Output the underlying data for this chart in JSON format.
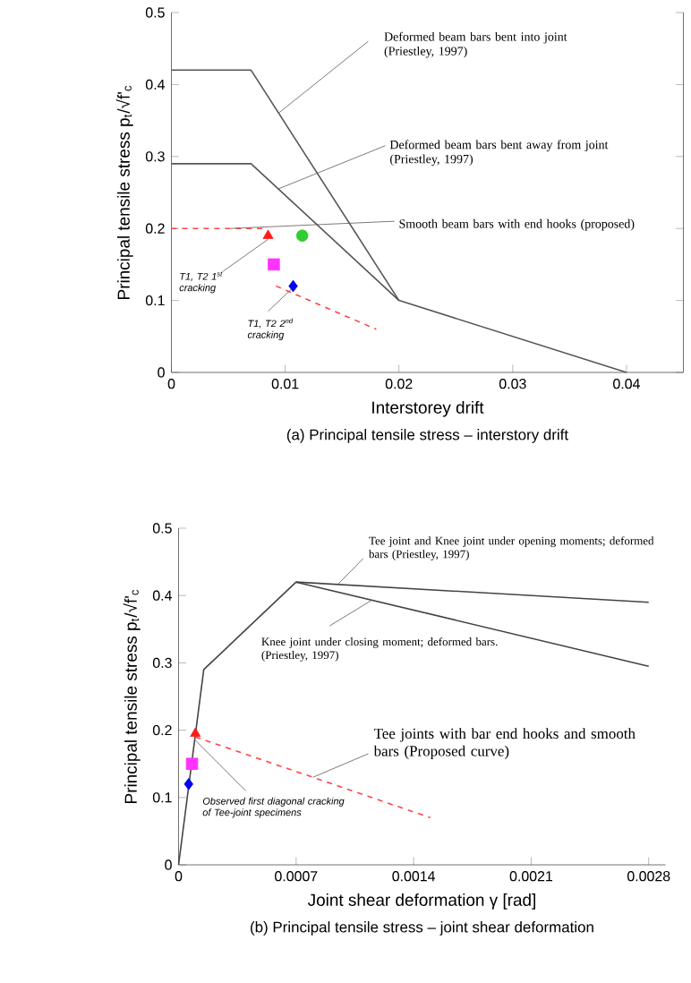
{
  "chart_data": [
    {
      "type": "line",
      "title": "(a) Principal tensile stress – interstory drift",
      "xlabel": "Interstorey drift",
      "ylabel": "Principal tensile stress p$_{t}$/√f'$_{c}$",
      "xlim": [
        0,
        0.045
      ],
      "ylim": [
        0,
        0.5
      ],
      "xticks": [
        0,
        0.01,
        0.02,
        0.03,
        0.04
      ],
      "yticks": [
        0,
        0.1,
        0.2,
        0.3,
        0.4,
        0.5
      ],
      "series": [
        {
          "type": "line",
          "color": "#555555",
          "x": [
            0,
            0.007,
            0.02,
            0.04
          ],
          "values": [
            0.42,
            0.42,
            0.1,
            0
          ]
        },
        {
          "type": "line",
          "color": "#555555",
          "x": [
            0,
            0.007,
            0.02
          ],
          "values": [
            0.29,
            0.29,
            0.1
          ]
        },
        {
          "type": "line",
          "color": "#ff4444",
          "line_style": "dashed",
          "x": [
            0,
            0.008
          ],
          "values": [
            0.2,
            0.2
          ]
        },
        {
          "type": "line",
          "color": "#ff4444",
          "line_style": "dashed",
          "x": [
            0.0092,
            0.018
          ],
          "values": [
            0.12,
            0.06
          ]
        },
        {
          "type": "scatter",
          "color": "#ff1a1a",
          "marker": "triangle",
          "x": [
            0.0085
          ],
          "values": [
            0.19
          ]
        },
        {
          "type": "scatter",
          "color": "#33cc33",
          "marker": "circle",
          "x": [
            0.0115
          ],
          "values": [
            0.19
          ]
        },
        {
          "type": "scatter",
          "color": "#ff33ff",
          "marker": "square",
          "x": [
            0.009
          ],
          "values": [
            0.15
          ]
        },
        {
          "type": "scatter",
          "color": "#0000ee",
          "marker": "diamond",
          "x": [
            0.0107
          ],
          "values": [
            0.12
          ]
        }
      ],
      "annotations": [
        {
          "text": "Deformed beam bars bent into joint (Priestley, 1997)",
          "x": 0.0094,
          "y": 0.36
        },
        {
          "text": "Deformed beam bars bent away from joint (Priestley, 1997)",
          "x": 0.0094,
          "y": 0.255
        },
        {
          "text": "Smooth beam bars with end hooks (proposed)",
          "x": 0.0052,
          "y": 0.2
        },
        {
          "text": "T1, T2 1$^{st}$ cracking",
          "x": 0.0085,
          "y": 0.185
        },
        {
          "text": "T1, T2 2$^{nd}$ cracking",
          "x": 0.0105,
          "y": 0.115
        }
      ]
    },
    {
      "type": "line",
      "title": "(b) Principal tensile stress – joint shear deformation",
      "xlabel": "Joint shear deformation γ [rad]",
      "ylabel": "Principal tensile stress p$_{t}$/√f'$_{c}$",
      "xlim": [
        0,
        0.0029
      ],
      "ylim": [
        0,
        0.5
      ],
      "xticks": [
        0,
        0.0007,
        0.0014,
        0.0021,
        0.0028
      ],
      "yticks": [
        0,
        0.1,
        0.2,
        0.3,
        0.4,
        0.5
      ],
      "series": [
        {
          "type": "line",
          "color": "#444444",
          "x": [
            0,
            0.00015,
            0.0007,
            0.0028
          ],
          "values": [
            0,
            0.29,
            0.42,
            0.39
          ]
        },
        {
          "type": "line",
          "color": "#444444",
          "x": [
            0.0007,
            0.0028
          ],
          "values": [
            0.42,
            0.295
          ]
        },
        {
          "type": "line",
          "color": "#ff4444",
          "line_style": "dashed",
          "x": [
            0.0001,
            0.0015
          ],
          "values": [
            0.19,
            0.07
          ]
        },
        {
          "type": "scatter",
          "color": "#ff1a1a",
          "marker": "triangle",
          "x": [
            0.0001
          ],
          "values": [
            0.195
          ]
        },
        {
          "type": "scatter",
          "color": "#ff33ff",
          "marker": "square",
          "x": [
            8e-05
          ],
          "values": [
            0.15
          ]
        },
        {
          "type": "scatter",
          "color": "#0000ee",
          "marker": "diamond",
          "x": [
            6e-05
          ],
          "values": [
            0.12
          ]
        }
      ],
      "annotations": [
        {
          "text": "Tee joint and Knee joint under opening moments; deformed bars (Priestley, 1997)",
          "x": 0.00095,
          "y": 0.417
        },
        {
          "text": "Knee joint under closing moment; deformed bars. (Priestley, 1997)",
          "x": 0.00115,
          "y": 0.393
        },
        {
          "text": "Tee joints with bar end hooks and smooth bars (Proposed curve)",
          "x": 0.0008,
          "y": 0.13
        },
        {
          "text": "Observed first diagonal cracking of Tee-joint specimens",
          "x": 0.0001,
          "y": 0.185
        }
      ]
    }
  ]
}
